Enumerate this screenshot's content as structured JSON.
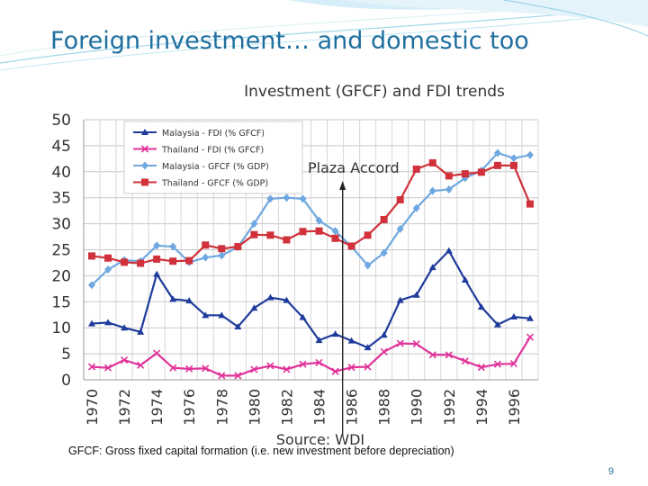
{
  "slide": {
    "title": "Foreign investment… and domestic too",
    "footnote": "GFCF: Gross fixed capital formation (i.e. new investment before depreciation)",
    "page_number": "9"
  },
  "chart_data": {
    "type": "line",
    "title": "Investment (GFCF) and FDI trends",
    "source": "Source: WDI",
    "annotation": {
      "text": "Plaza Accord",
      "x": 1985
    },
    "xlabel": "",
    "ylabel": "",
    "xlim": [
      1970,
      1997
    ],
    "ylim": [
      0,
      50
    ],
    "yticks": [
      0,
      5,
      10,
      15,
      20,
      25,
      30,
      35,
      40,
      45,
      50
    ],
    "xtick_labels": [
      "1970",
      "1972",
      "1974",
      "1976",
      "1978",
      "1980",
      "1982",
      "1984",
      "1986",
      "1988",
      "1990",
      "1992",
      "1994",
      "1996"
    ],
    "grid": true,
    "legend_position": "top-left",
    "x": [
      1970,
      1971,
      1972,
      1973,
      1974,
      1975,
      1976,
      1977,
      1978,
      1979,
      1980,
      1981,
      1982,
      1983,
      1984,
      1985,
      1986,
      1987,
      1988,
      1989,
      1990,
      1991,
      1992,
      1993,
      1994,
      1995,
      1996,
      1997
    ],
    "series": [
      {
        "name": "Malaysia - FDI (% GFCF)",
        "color": "#1f3c9c",
        "marker": "triangle",
        "values": [
          10.8,
          11.0,
          10.0,
          9.2,
          20.3,
          15.5,
          15.2,
          12.4,
          12.4,
          10.2,
          13.8,
          15.8,
          15.3,
          12.0,
          7.6,
          8.8,
          7.5,
          6.2,
          8.6,
          15.3,
          16.3,
          21.6,
          24.8,
          19.2,
          14.0,
          10.6,
          12.1,
          11.8
        ]
      },
      {
        "name": "Thailand - FDI (% GFCF)",
        "color": "#e0339a",
        "marker": "x",
        "values": [
          2.5,
          2.3,
          3.8,
          2.8,
          5.1,
          2.3,
          2.1,
          2.2,
          0.8,
          0.8,
          2.0,
          2.7,
          2.0,
          3.0,
          3.3,
          1.6,
          2.4,
          2.5,
          5.4,
          7.0,
          6.9,
          4.8,
          4.8,
          3.6,
          2.4,
          3.0,
          3.1,
          8.2
        ]
      },
      {
        "name": "Malaysia - GFCF (% GDP)",
        "color": "#6fa8e0",
        "marker": "diamond",
        "values": [
          18.2,
          21.2,
          23.0,
          22.8,
          25.8,
          25.6,
          22.6,
          23.5,
          23.9,
          25.5,
          30.0,
          34.8,
          35.0,
          34.8,
          30.6,
          28.6,
          25.6,
          22.0,
          24.4,
          29.0,
          33.0,
          36.3,
          36.6,
          38.8,
          40.2,
          43.6,
          42.6,
          43.2
        ]
      },
      {
        "name": "Thailand - GFCF (% GDP)",
        "color": "#d0313b",
        "marker": "square",
        "values": [
          23.8,
          23.4,
          22.6,
          22.4,
          23.2,
          22.8,
          22.9,
          25.9,
          25.2,
          25.6,
          27.9,
          27.8,
          26.9,
          28.5,
          28.6,
          27.2,
          25.7,
          27.8,
          30.8,
          34.6,
          40.5,
          41.7,
          39.2,
          39.6,
          39.9,
          41.2,
          41.2,
          33.8
        ]
      }
    ]
  }
}
